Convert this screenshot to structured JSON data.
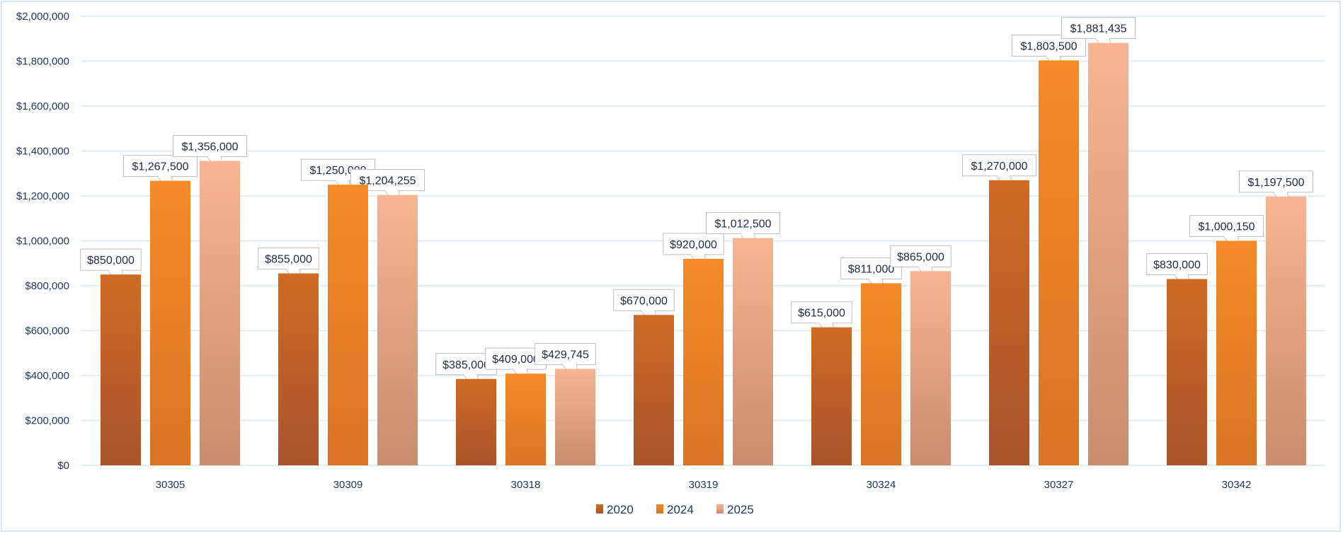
{
  "chart_data": {
    "type": "bar",
    "categories": [
      "30305",
      "30309",
      "30318",
      "30319",
      "30324",
      "30327",
      "30342"
    ],
    "series": [
      {
        "name": "2020",
        "values": [
          850000,
          855000,
          385000,
          670000,
          615000,
          1270000,
          830000
        ],
        "color_top": "#cf6a25",
        "color_bottom": "#a9542a"
      },
      {
        "name": "2024",
        "values": [
          1267500,
          1250000,
          409000,
          920000,
          811000,
          1803500,
          1000150
        ],
        "color_top": "#f48b27",
        "color_bottom": "#d97427"
      },
      {
        "name": "2025",
        "values": [
          1356000,
          1204255,
          429745,
          1012500,
          865000,
          1881435,
          1197500
        ],
        "color_top": "#f7b592",
        "color_bottom": "#c98c6e"
      }
    ],
    "data_labels": [
      [
        "$850,000",
        "$855,000",
        "$385,000",
        "$670,000",
        "$615,000",
        "$1,270,000",
        "$830,000"
      ],
      [
        "$1,267,500",
        "$1,250,000",
        "$409,000",
        "$920,000",
        "$811,000",
        "$1,803,500",
        "$1,000,150"
      ],
      [
        "$1,356,000",
        "$1,204,255",
        "$429,745",
        "$1,012,500",
        "$865,000",
        "$1,881,435",
        "$1,197,500"
      ]
    ],
    "y_ticks": [
      "$0",
      "$200,000",
      "$400,000",
      "$600,000",
      "$800,000",
      "$1,000,000",
      "$1,200,000",
      "$1,400,000",
      "$1,600,000",
      "$1,800,000",
      "$2,000,000"
    ],
    "ylim": [
      0,
      2000000
    ],
    "grid": true,
    "legend": "bottom",
    "title": "",
    "xlabel": "",
    "ylabel": ""
  }
}
